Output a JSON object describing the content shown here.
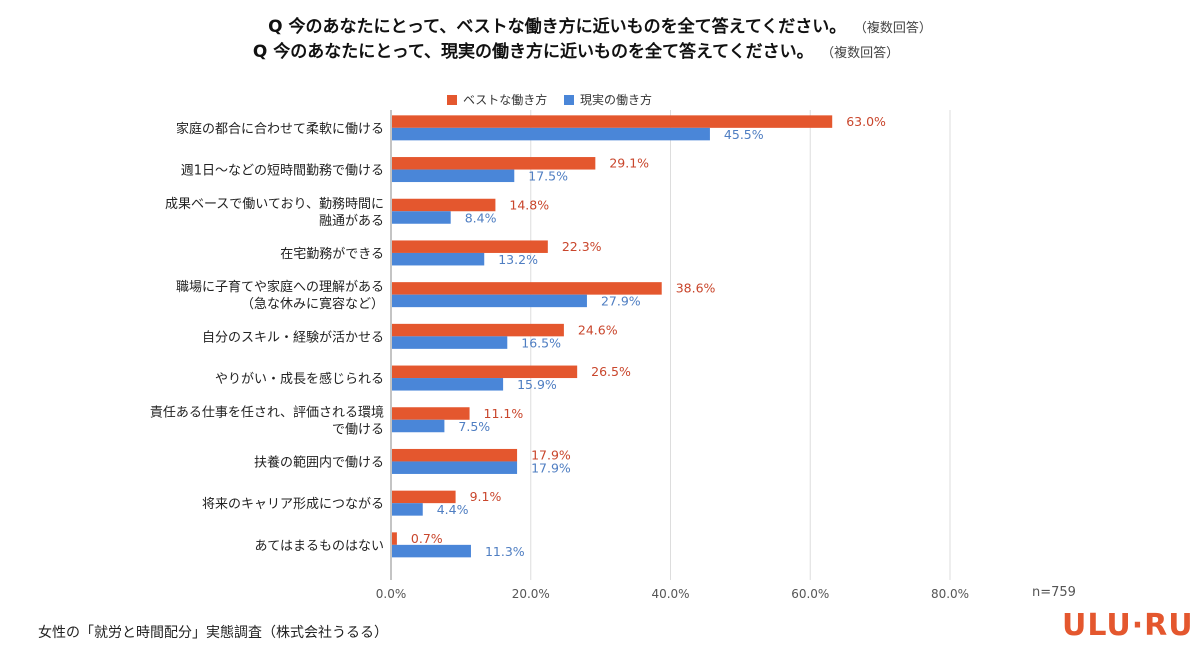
{
  "title": {
    "line1": "Q 今のあなたにとって、ベストな働き方に近いものを全て答えてください。",
    "line1_note": "（複数回答）",
    "line2": "Q 今のあなたにとって、現実の働き方に近いものを全て答えてください。",
    "line2_note": "（複数回答）"
  },
  "sample_size": "n=759",
  "source": "女性の「就労と時間配分」実態調査（株式会社うるる）",
  "brand": "ULU·RU",
  "colors": {
    "best": "#e4572e",
    "real": "#4a86d8",
    "grid": "#dddddd",
    "axis": "#888888"
  },
  "chart_data": {
    "type": "bar",
    "orientation": "horizontal",
    "categories": [
      "家庭の都合に合わせて柔軟に働ける",
      "週1日～などの短時間勤務で働ける",
      "成果ベースで働いており、勤務時間に融通がある",
      "在宅勤務ができる",
      "職場に子育てや家庭への理解がある（急な休みに寛容など）",
      "自分のスキル・経験が活かせる",
      "やりがい・成長を感じられる",
      "責任ある仕事を任され、評価される環境で働ける",
      "扶養の範囲内で働ける",
      "将来のキャリア形成につながる",
      "あてはまるものはない"
    ],
    "category_lines": [
      [
        "家庭の都合に合わせて柔軟に働ける"
      ],
      [
        "週1日～などの短時間勤務で働ける"
      ],
      [
        "成果ベースで働いており、勤務時間に",
        "融通がある"
      ],
      [
        "在宅勤務ができる"
      ],
      [
        "職場に子育てや家庭への理解がある",
        "（急な休みに寛容など）"
      ],
      [
        "自分のスキル・経験が活かせる"
      ],
      [
        "やりがい・成長を感じられる"
      ],
      [
        "責任ある仕事を任され、評価される環境",
        "で働ける"
      ],
      [
        "扶養の範囲内で働ける"
      ],
      [
        "将来のキャリア形成につながる"
      ],
      [
        "あてはまるものはない"
      ]
    ],
    "series": [
      {
        "name": "ベストな働き方",
        "values": [
          63.0,
          29.1,
          14.8,
          22.3,
          38.6,
          24.6,
          26.5,
          11.1,
          17.9,
          9.1,
          0.7
        ],
        "labels": [
          "63.0%",
          "29.1%",
          "14.8%",
          "22.3%",
          "38.6%",
          "24.6%",
          "26.5%",
          "11.1%",
          "17.9%",
          "9.1%",
          "0.7%"
        ]
      },
      {
        "name": "現実の働き方",
        "values": [
          45.5,
          17.5,
          8.4,
          13.2,
          27.9,
          16.5,
          15.9,
          7.5,
          17.9,
          4.4,
          11.3
        ],
        "labels": [
          "45.5%",
          "17.5%",
          "8.4%",
          "13.2%",
          "27.9%",
          "16.5%",
          "15.9%",
          "7.5%",
          "17.9%",
          "4.4%",
          "11.3%"
        ]
      }
    ],
    "x_ticks": [
      0,
      20,
      40,
      60,
      80
    ],
    "x_tick_labels": [
      "0.0%",
      "20.0%",
      "40.0%",
      "60.0%",
      "80.0%"
    ],
    "xlim": [
      0,
      80
    ],
    "grid": true,
    "legend_position": "top"
  }
}
